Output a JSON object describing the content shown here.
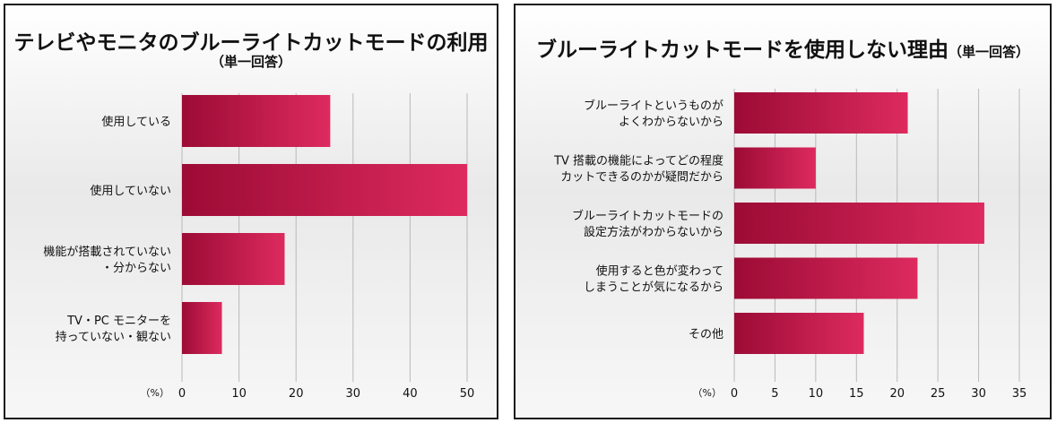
{
  "chart_data": [
    {
      "type": "bar",
      "orientation": "horizontal",
      "title": "テレビやモニタのブルーライトカットモードの利用",
      "subtitle": "（単一回答）",
      "unit": "（%）",
      "categories": [
        [
          "使用している"
        ],
        [
          "使用していない"
        ],
        [
          "機能が搭載されていない",
          "・分からない"
        ],
        [
          "TV・PC モニターを",
          "持っていない・観ない"
        ]
      ],
      "values": [
        26,
        50,
        18,
        7
      ],
      "xlim": [
        0,
        50
      ],
      "ticks": [
        0,
        10,
        20,
        30,
        40,
        50
      ],
      "grid": true
    },
    {
      "type": "bar",
      "orientation": "horizontal",
      "title": "ブルーライトカットモードを使用しない理由",
      "subtitle": "（単一回答）",
      "unit": "（%）",
      "categories": [
        [
          "ブルーライトというものが",
          "よくわからないから"
        ],
        [
          "TV 搭載の機能によってどの程度",
          "カットできるのかが疑問だから"
        ],
        [
          "ブルーライトカットモードの",
          "設定方法がわからないから"
        ],
        [
          "使用すると色が変わって",
          "しまうことが気になるから"
        ],
        [
          "その他"
        ]
      ],
      "values": [
        21.3,
        10,
        30.7,
        22.5,
        15.9
      ],
      "xlim": [
        0,
        35
      ],
      "ticks": [
        0,
        5,
        10,
        15,
        20,
        25,
        30,
        35
      ],
      "grid": true
    }
  ],
  "colors": {
    "bar_dark": "#9c0b35",
    "bar_light": "#dd2a5f",
    "grid": "#b9b9b9"
  }
}
